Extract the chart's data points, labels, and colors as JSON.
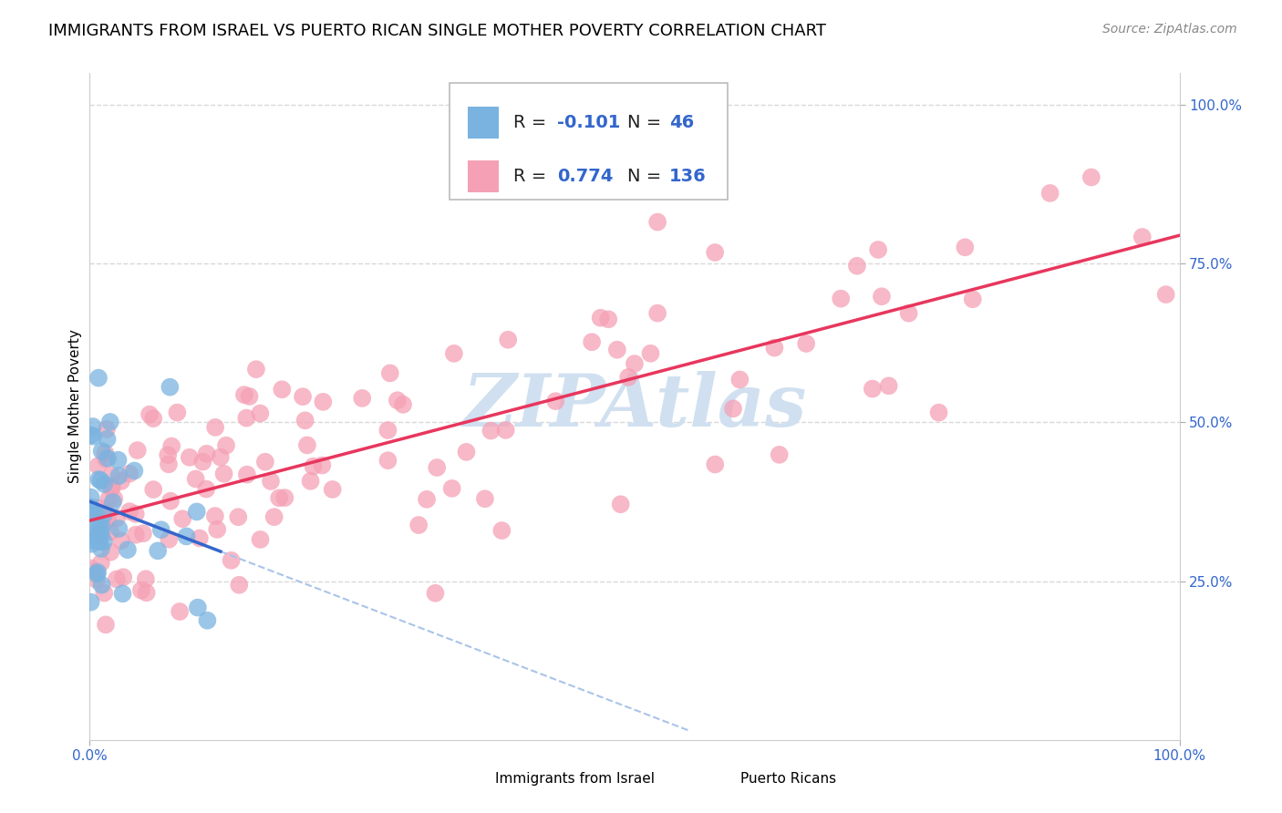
{
  "title": "IMMIGRANTS FROM ISRAEL VS PUERTO RICAN SINGLE MOTHER POVERTY CORRELATION CHART",
  "source": "Source: ZipAtlas.com",
  "ylabel": "Single Mother Poverty",
  "xlim": [
    0.0,
    1.0
  ],
  "ylim": [
    0.0,
    1.05
  ],
  "blue_color": "#7ab3e0",
  "pink_color": "#f5a0b5",
  "blue_line_color": "#3366cc",
  "pink_line_color": "#e8365d",
  "dashed_line_color": "#aac4e8",
  "watermark_color": "#d0e0f0",
  "background_color": "#ffffff",
  "grid_color": "#d8d8d8",
  "legend_label1": "Immigrants from Israel",
  "legend_label2": "Puerto Ricans",
  "title_fontsize": 13,
  "label_fontsize": 11,
  "tick_fontsize": 11,
  "legend_fontsize": 14,
  "r1": "-0.101",
  "n1": "46",
  "r2": "0.774",
  "n2": "136"
}
